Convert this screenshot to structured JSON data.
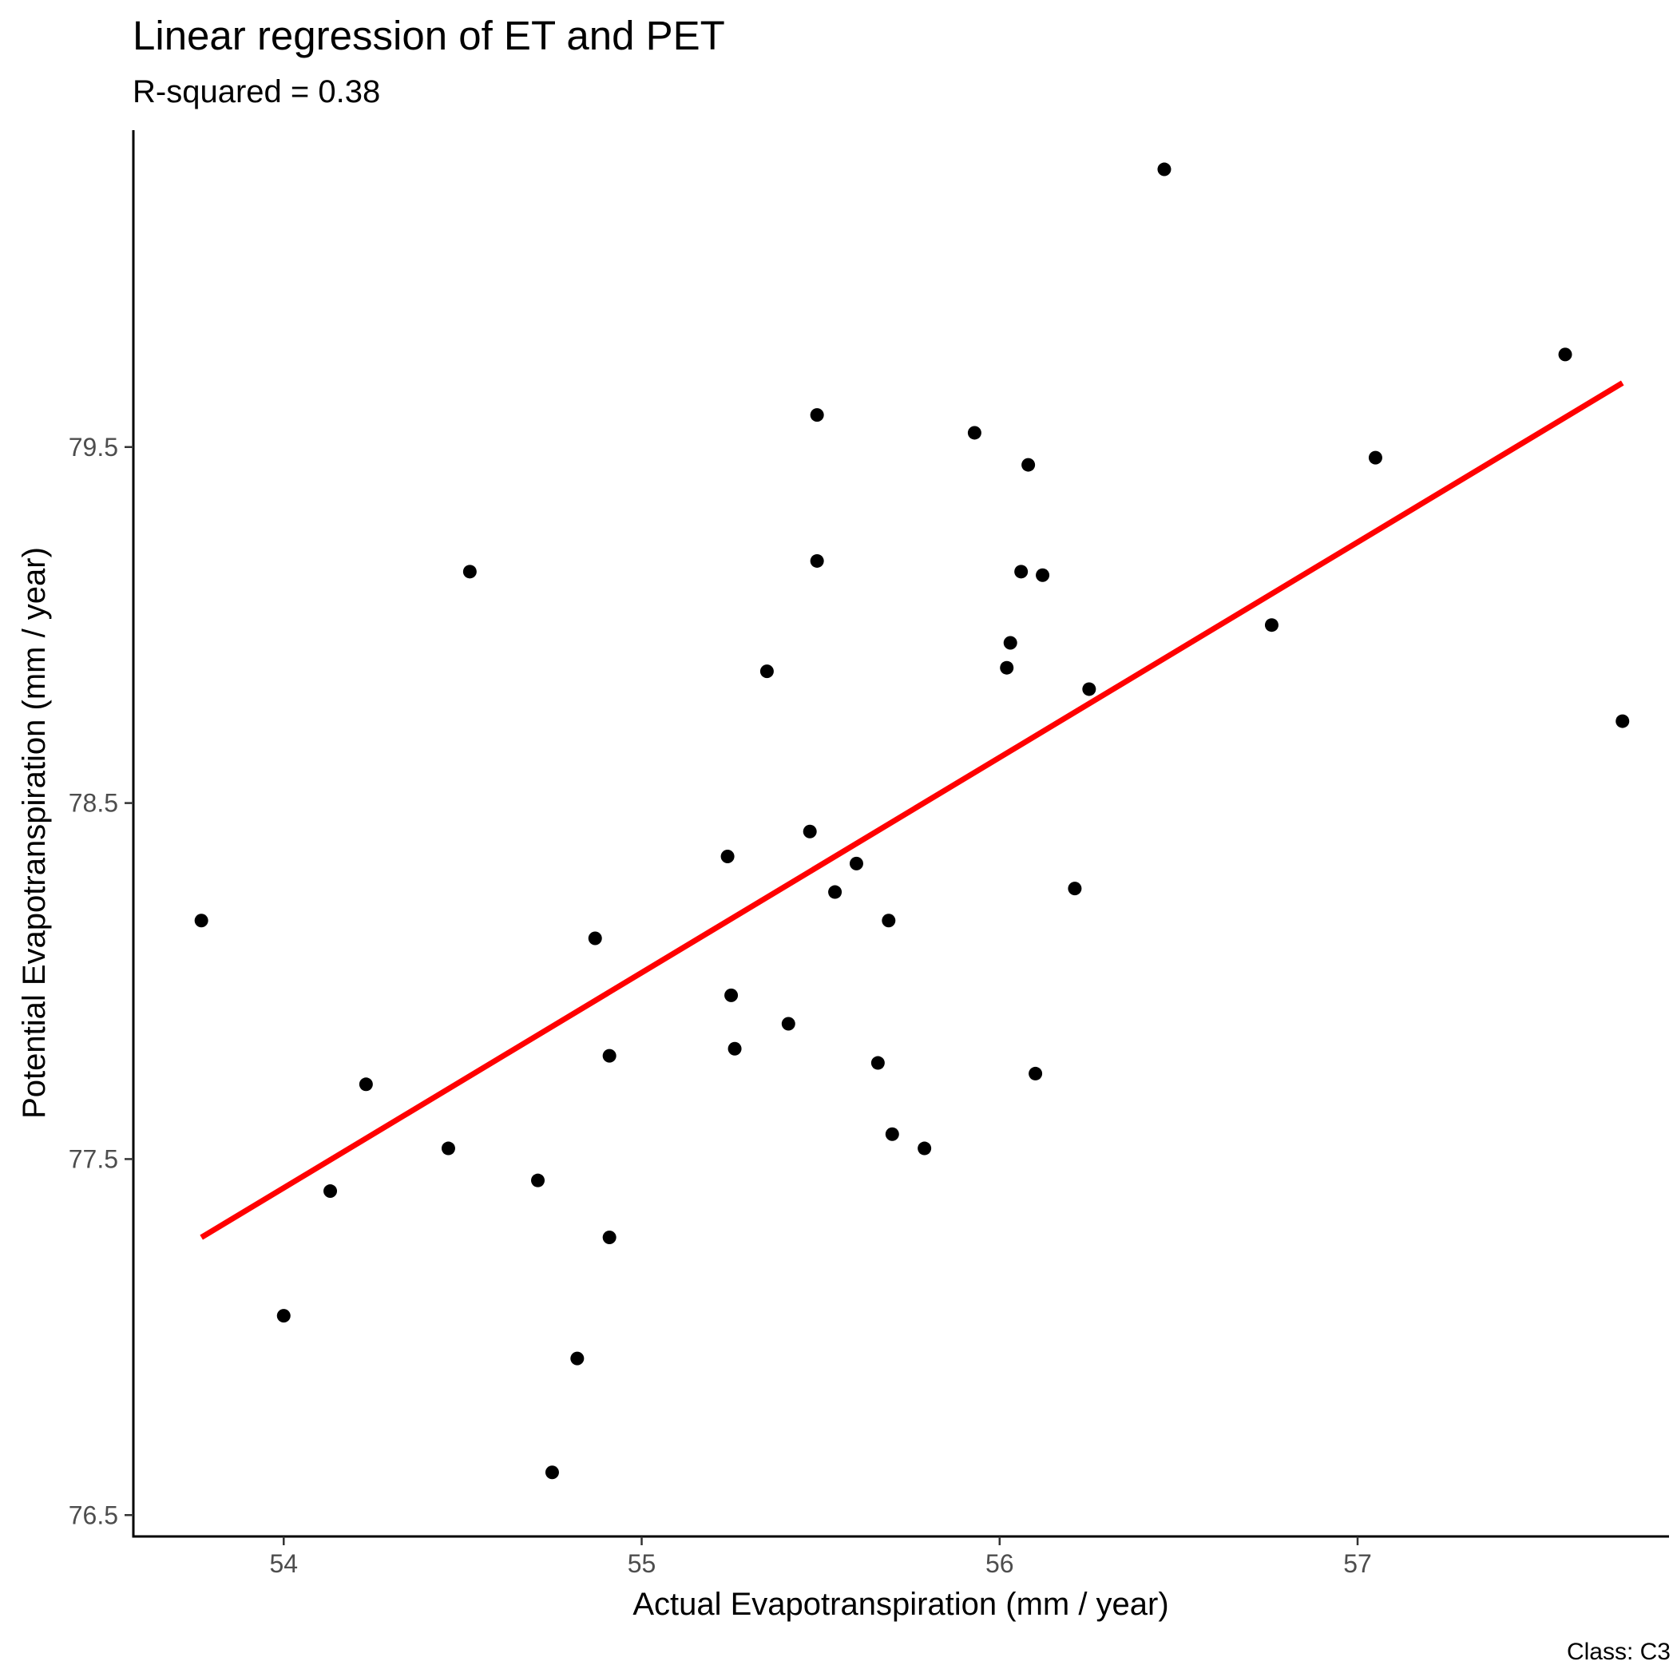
{
  "chart_data": {
    "type": "scatter",
    "title": "Linear regression of ET and PET",
    "subtitle": "R-squared = 0.38",
    "xlabel": "Actual Evapotranspiration (mm / year)",
    "ylabel": "Potential Evapotranspiration (mm / year)",
    "caption": "Class: C3",
    "xlim": [
      53.58,
      57.87
    ],
    "ylim": [
      76.44,
      80.39
    ],
    "x_ticks": [
      54,
      55,
      56,
      57
    ],
    "y_ticks": [
      76.5,
      77.5,
      78.5,
      79.5
    ],
    "x_tick_labels": [
      "54",
      "55",
      "56",
      "57"
    ],
    "y_tick_labels": [
      "76.5",
      "77.5",
      "78.5",
      "79.5"
    ],
    "grid": false,
    "legend": "none",
    "point_color": "#000000",
    "fit_line_color": "#ff0000",
    "points": [
      {
        "x": 53.77,
        "y": 78.17
      },
      {
        "x": 54.0,
        "y": 77.06
      },
      {
        "x": 54.13,
        "y": 77.41
      },
      {
        "x": 54.23,
        "y": 77.71
      },
      {
        "x": 54.46,
        "y": 77.53
      },
      {
        "x": 54.52,
        "y": 79.15
      },
      {
        "x": 54.71,
        "y": 77.44
      },
      {
        "x": 54.75,
        "y": 76.62
      },
      {
        "x": 54.82,
        "y": 76.94
      },
      {
        "x": 54.87,
        "y": 78.12
      },
      {
        "x": 54.91,
        "y": 77.28
      },
      {
        "x": 54.91,
        "y": 77.79
      },
      {
        "x": 55.24,
        "y": 78.35
      },
      {
        "x": 55.25,
        "y": 77.96
      },
      {
        "x": 55.26,
        "y": 77.81
      },
      {
        "x": 55.35,
        "y": 78.87
      },
      {
        "x": 55.41,
        "y": 77.88
      },
      {
        "x": 55.47,
        "y": 78.42
      },
      {
        "x": 55.49,
        "y": 79.18
      },
      {
        "x": 55.49,
        "y": 79.59
      },
      {
        "x": 55.54,
        "y": 78.25
      },
      {
        "x": 55.6,
        "y": 78.33
      },
      {
        "x": 55.66,
        "y": 77.77
      },
      {
        "x": 55.69,
        "y": 78.17
      },
      {
        "x": 55.7,
        "y": 77.57
      },
      {
        "x": 55.79,
        "y": 77.53
      },
      {
        "x": 55.93,
        "y": 79.54
      },
      {
        "x": 56.02,
        "y": 78.88
      },
      {
        "x": 56.03,
        "y": 78.95
      },
      {
        "x": 56.06,
        "y": 79.15
      },
      {
        "x": 56.08,
        "y": 79.45
      },
      {
        "x": 56.1,
        "y": 77.74
      },
      {
        "x": 56.12,
        "y": 79.14
      },
      {
        "x": 56.21,
        "y": 78.26
      },
      {
        "x": 56.25,
        "y": 78.82
      },
      {
        "x": 56.46,
        "y": 80.28
      },
      {
        "x": 56.76,
        "y": 79.0
      },
      {
        "x": 57.05,
        "y": 79.47
      },
      {
        "x": 57.58,
        "y": 79.76
      },
      {
        "x": 57.74,
        "y": 78.73
      }
    ],
    "fit_line": [
      {
        "x": 53.77,
        "y": 77.28
      },
      {
        "x": 57.74,
        "y": 79.68
      }
    ]
  }
}
